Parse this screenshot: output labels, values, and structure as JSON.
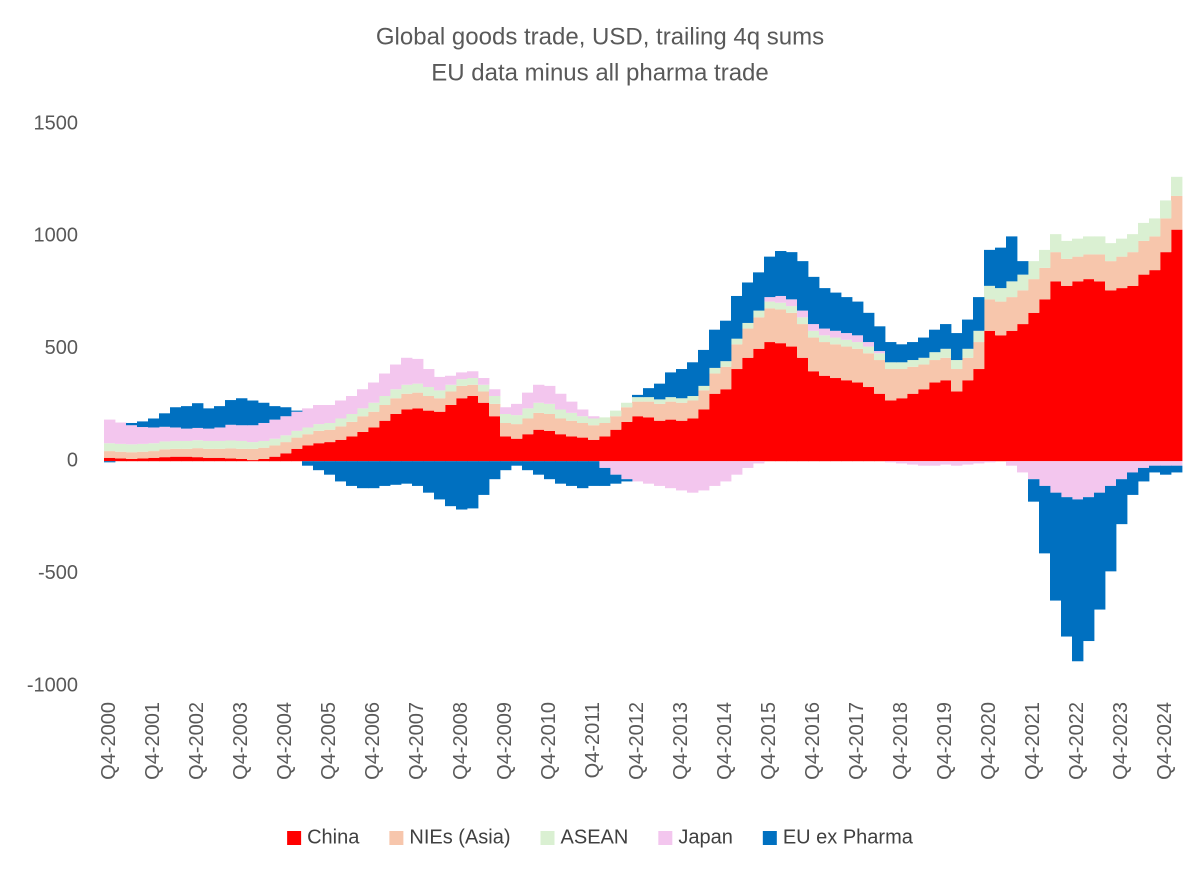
{
  "chart_data": {
    "type": "bar",
    "stacked": true,
    "title": "Global goods trade, USD, trailing 4q sums",
    "subtitle": "EU data minus all pharma trade",
    "categories": [
      "Q4-2000",
      null,
      null,
      null,
      "Q4-2001",
      null,
      null,
      null,
      "Q4-2002",
      null,
      null,
      null,
      "Q4-2003",
      null,
      null,
      null,
      "Q4-2004",
      null,
      null,
      null,
      "Q4-2005",
      null,
      null,
      null,
      "Q4-2006",
      null,
      null,
      null,
      "Q4-2007",
      null,
      null,
      null,
      "Q4-2008",
      null,
      null,
      null,
      "Q4-2009",
      null,
      null,
      null,
      "Q4-2010",
      null,
      null,
      null,
      "Q4-2011",
      null,
      null,
      null,
      "Q4-2012",
      null,
      null,
      null,
      "Q4-2013",
      null,
      null,
      null,
      "Q4-2014",
      null,
      null,
      null,
      "Q4-2015",
      null,
      null,
      null,
      "Q4-2016",
      null,
      null,
      null,
      "Q4-2017",
      null,
      null,
      null,
      "Q4-2018",
      null,
      null,
      null,
      "Q4-2019",
      null,
      null,
      null,
      "Q4-2020",
      null,
      null,
      null,
      "Q4-2021",
      null,
      null,
      null,
      "Q4-2022",
      null,
      null,
      null,
      "Q4-2023",
      null,
      null,
      null,
      "Q4-2024",
      null
    ],
    "series": [
      {
        "name": "China",
        "color": "#ff0000",
        "values": [
          15,
          12,
          10,
          12,
          15,
          18,
          20,
          20,
          18,
          15,
          15,
          12,
          10,
          5,
          10,
          20,
          35,
          55,
          70,
          80,
          85,
          95,
          110,
          130,
          150,
          180,
          210,
          230,
          235,
          225,
          220,
          250,
          280,
          290,
          260,
          200,
          110,
          100,
          120,
          140,
          135,
          120,
          110,
          105,
          95,
          110,
          140,
          175,
          200,
          195,
          180,
          185,
          180,
          190,
          230,
          300,
          320,
          410,
          460,
          500,
          530,
          525,
          510,
          460,
          400,
          380,
          370,
          360,
          350,
          330,
          300,
          270,
          280,
          300,
          320,
          350,
          360,
          310,
          360,
          410,
          580,
          560,
          580,
          610,
          660,
          720,
          800,
          780,
          800,
          810,
          800,
          760,
          770,
          780,
          830,
          850,
          930,
          1030
        ]
      },
      {
        "name": "NIEs (Asia)",
        "color": "#f7c6ac",
        "values": [
          30,
          30,
          30,
          30,
          30,
          35,
          35,
          35,
          40,
          40,
          40,
          45,
          45,
          50,
          50,
          50,
          50,
          50,
          50,
          55,
          55,
          60,
          65,
          70,
          70,
          70,
          70,
          70,
          70,
          65,
          60,
          60,
          55,
          50,
          50,
          55,
          60,
          65,
          70,
          75,
          75,
          70,
          70,
          65,
          65,
          60,
          60,
          65,
          65,
          70,
          75,
          80,
          80,
          80,
          85,
          90,
          100,
          110,
          130,
          140,
          150,
          150,
          150,
          150,
          150,
          150,
          150,
          150,
          150,
          150,
          150,
          140,
          130,
          120,
          110,
          100,
          100,
          100,
          100,
          120,
          140,
          150,
          150,
          150,
          150,
          140,
          130,
          120,
          110,
          110,
          120,
          130,
          140,
          150,
          150,
          150,
          150,
          150
        ]
      },
      {
        "name": "ASEAN",
        "color": "#daf0d2",
        "values": [
          35,
          35,
          35,
          35,
          35,
          35,
          35,
          35,
          35,
          35,
          35,
          35,
          35,
          30,
          30,
          30,
          30,
          30,
          30,
          30,
          30,
          35,
          35,
          35,
          40,
          40,
          40,
          40,
          40,
          40,
          35,
          30,
          30,
          30,
          30,
          35,
          40,
          40,
          45,
          45,
          45,
          40,
          35,
          30,
          30,
          25,
          25,
          20,
          20,
          20,
          20,
          20,
          20,
          20,
          20,
          25,
          25,
          25,
          25,
          30,
          30,
          30,
          30,
          30,
          30,
          30,
          30,
          30,
          30,
          30,
          30,
          30,
          30,
          30,
          30,
          35,
          40,
          40,
          40,
          50,
          60,
          60,
          70,
          70,
          80,
          80,
          80,
          80,
          80,
          80,
          80,
          80,
          80,
          80,
          80,
          80,
          80,
          85
        ]
      },
      {
        "name": "Japan",
        "color": "#f3c6ee",
        "values": [
          105,
          95,
          85,
          75,
          70,
          65,
          60,
          55,
          55,
          55,
          60,
          70,
          70,
          75,
          80,
          85,
          85,
          85,
          85,
          85,
          80,
          80,
          80,
          85,
          90,
          100,
          110,
          120,
          110,
          80,
          60,
          40,
          30,
          30,
          30,
          30,
          30,
          50,
          70,
          80,
          80,
          70,
          50,
          30,
          10,
          -30,
          -60,
          -80,
          -90,
          -100,
          -110,
          -120,
          -130,
          -140,
          -130,
          -110,
          -90,
          -60,
          -30,
          -10,
          20,
          30,
          30,
          30,
          30,
          30,
          30,
          30,
          30,
          20,
          10,
          -5,
          -10,
          -15,
          -20,
          -20,
          -15,
          -20,
          -15,
          -10,
          -5,
          0,
          -20,
          -50,
          -80,
          -110,
          -140,
          -160,
          -170,
          -160,
          -140,
          -110,
          -80,
          -50,
          -30,
          -20,
          -20,
          -20
        ]
      },
      {
        "name": "EU ex Pharma",
        "color": "#0070c0",
        "values": [
          -5,
          0,
          10,
          25,
          40,
          60,
          90,
          100,
          110,
          90,
          95,
          110,
          120,
          110,
          90,
          60,
          40,
          5,
          -20,
          -40,
          -60,
          -90,
          -110,
          -120,
          -120,
          -110,
          -105,
          -100,
          -110,
          -140,
          -170,
          -200,
          -215,
          -210,
          -150,
          -80,
          -40,
          -20,
          -40,
          -60,
          -80,
          -100,
          -110,
          -120,
          -110,
          -80,
          -40,
          -10,
          10,
          40,
          70,
          110,
          130,
          150,
          160,
          170,
          180,
          190,
          180,
          170,
          180,
          200,
          210,
          220,
          210,
          180,
          170,
          160,
          150,
          130,
          110,
          90,
          80,
          80,
          90,
          100,
          110,
          120,
          130,
          150,
          160,
          180,
          200,
          60,
          -100,
          -300,
          -480,
          -620,
          -720,
          -640,
          -520,
          -380,
          -200,
          -100,
          -60,
          -30,
          -40,
          -30
        ]
      }
    ],
    "ylim": [
      -1000,
      1500
    ],
    "yticks": [
      -1000,
      -500,
      0,
      500,
      1000,
      1500
    ],
    "grid": false,
    "legend": "bottom"
  }
}
